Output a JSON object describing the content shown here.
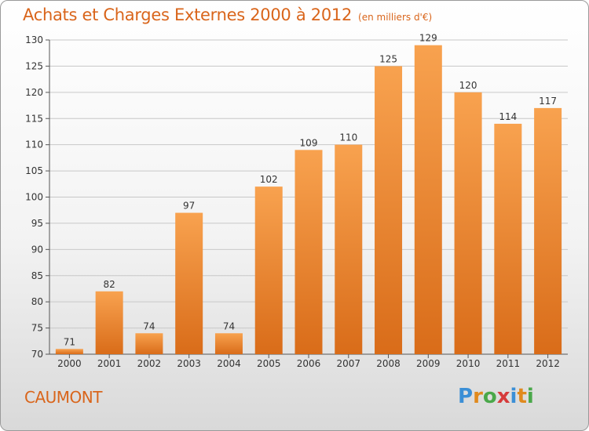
{
  "title": "Achats et Charges Externes 2000 à 2012",
  "unit_note": "(en milliers d'€)",
  "city": "CAUMONT",
  "brand": {
    "letters": [
      "P",
      "r",
      "o",
      "x",
      "i",
      "t",
      "i"
    ],
    "colors": [
      "#3b8fd6",
      "#e08a1e",
      "#4aa84a",
      "#d63b3b",
      "#3b8fd6",
      "#e08a1e",
      "#4aa84a"
    ]
  },
  "colors": {
    "bar_top": "#f8a24f",
    "bar_bottom": "#d96c19",
    "text": "#333333",
    "grid": "#c8c8c8"
  },
  "chart_data": {
    "type": "bar",
    "categories": [
      "2000",
      "2001",
      "2002",
      "2003",
      "2004",
      "2005",
      "2006",
      "2007",
      "2008",
      "2009",
      "2010",
      "2011",
      "2012"
    ],
    "values": [
      71,
      82,
      74,
      97,
      74,
      102,
      109,
      110,
      125,
      129,
      120,
      114,
      117
    ],
    "title": "Achats et Charges Externes 2000 à 2012",
    "xlabel": "",
    "ylabel": "",
    "ylim": [
      70,
      130
    ],
    "yticks": [
      70,
      75,
      80,
      85,
      90,
      95,
      100,
      105,
      110,
      115,
      120,
      125,
      130
    ],
    "grid": true
  }
}
